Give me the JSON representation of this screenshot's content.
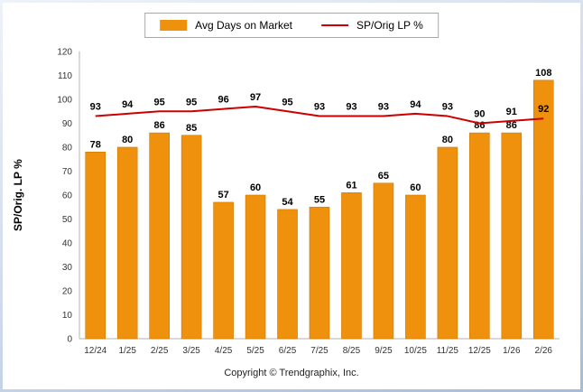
{
  "chart_data": {
    "type": "bar",
    "subtype": "bar+line combo",
    "categories": [
      "12/24",
      "1/25",
      "2/25",
      "3/25",
      "4/25",
      "5/25",
      "6/25",
      "7/25",
      "8/25",
      "9/25",
      "10/25",
      "11/25",
      "12/25",
      "1/26",
      "2/26"
    ],
    "series": [
      {
        "name": "Avg Days on Market",
        "type": "bar",
        "color": "#F0910D",
        "values": [
          78,
          80,
          86,
          85,
          57,
          60,
          54,
          55,
          61,
          65,
          60,
          80,
          86,
          86,
          108
        ]
      },
      {
        "name": "SP/Orig LP %",
        "type": "line",
        "color": "#CC0000",
        "values": [
          93,
          94,
          95,
          95,
          96,
          97,
          95,
          93,
          93,
          93,
          94,
          93,
          90,
          91,
          92
        ]
      }
    ],
    "title": "",
    "xlabel": "",
    "ylabel": "SP/Orig. LP %",
    "ylim": [
      0,
      120
    ],
    "ytick_step": 10,
    "grid": false,
    "legend_position": "top",
    "copyright": "Copyright © Trendgraphix, Inc."
  }
}
